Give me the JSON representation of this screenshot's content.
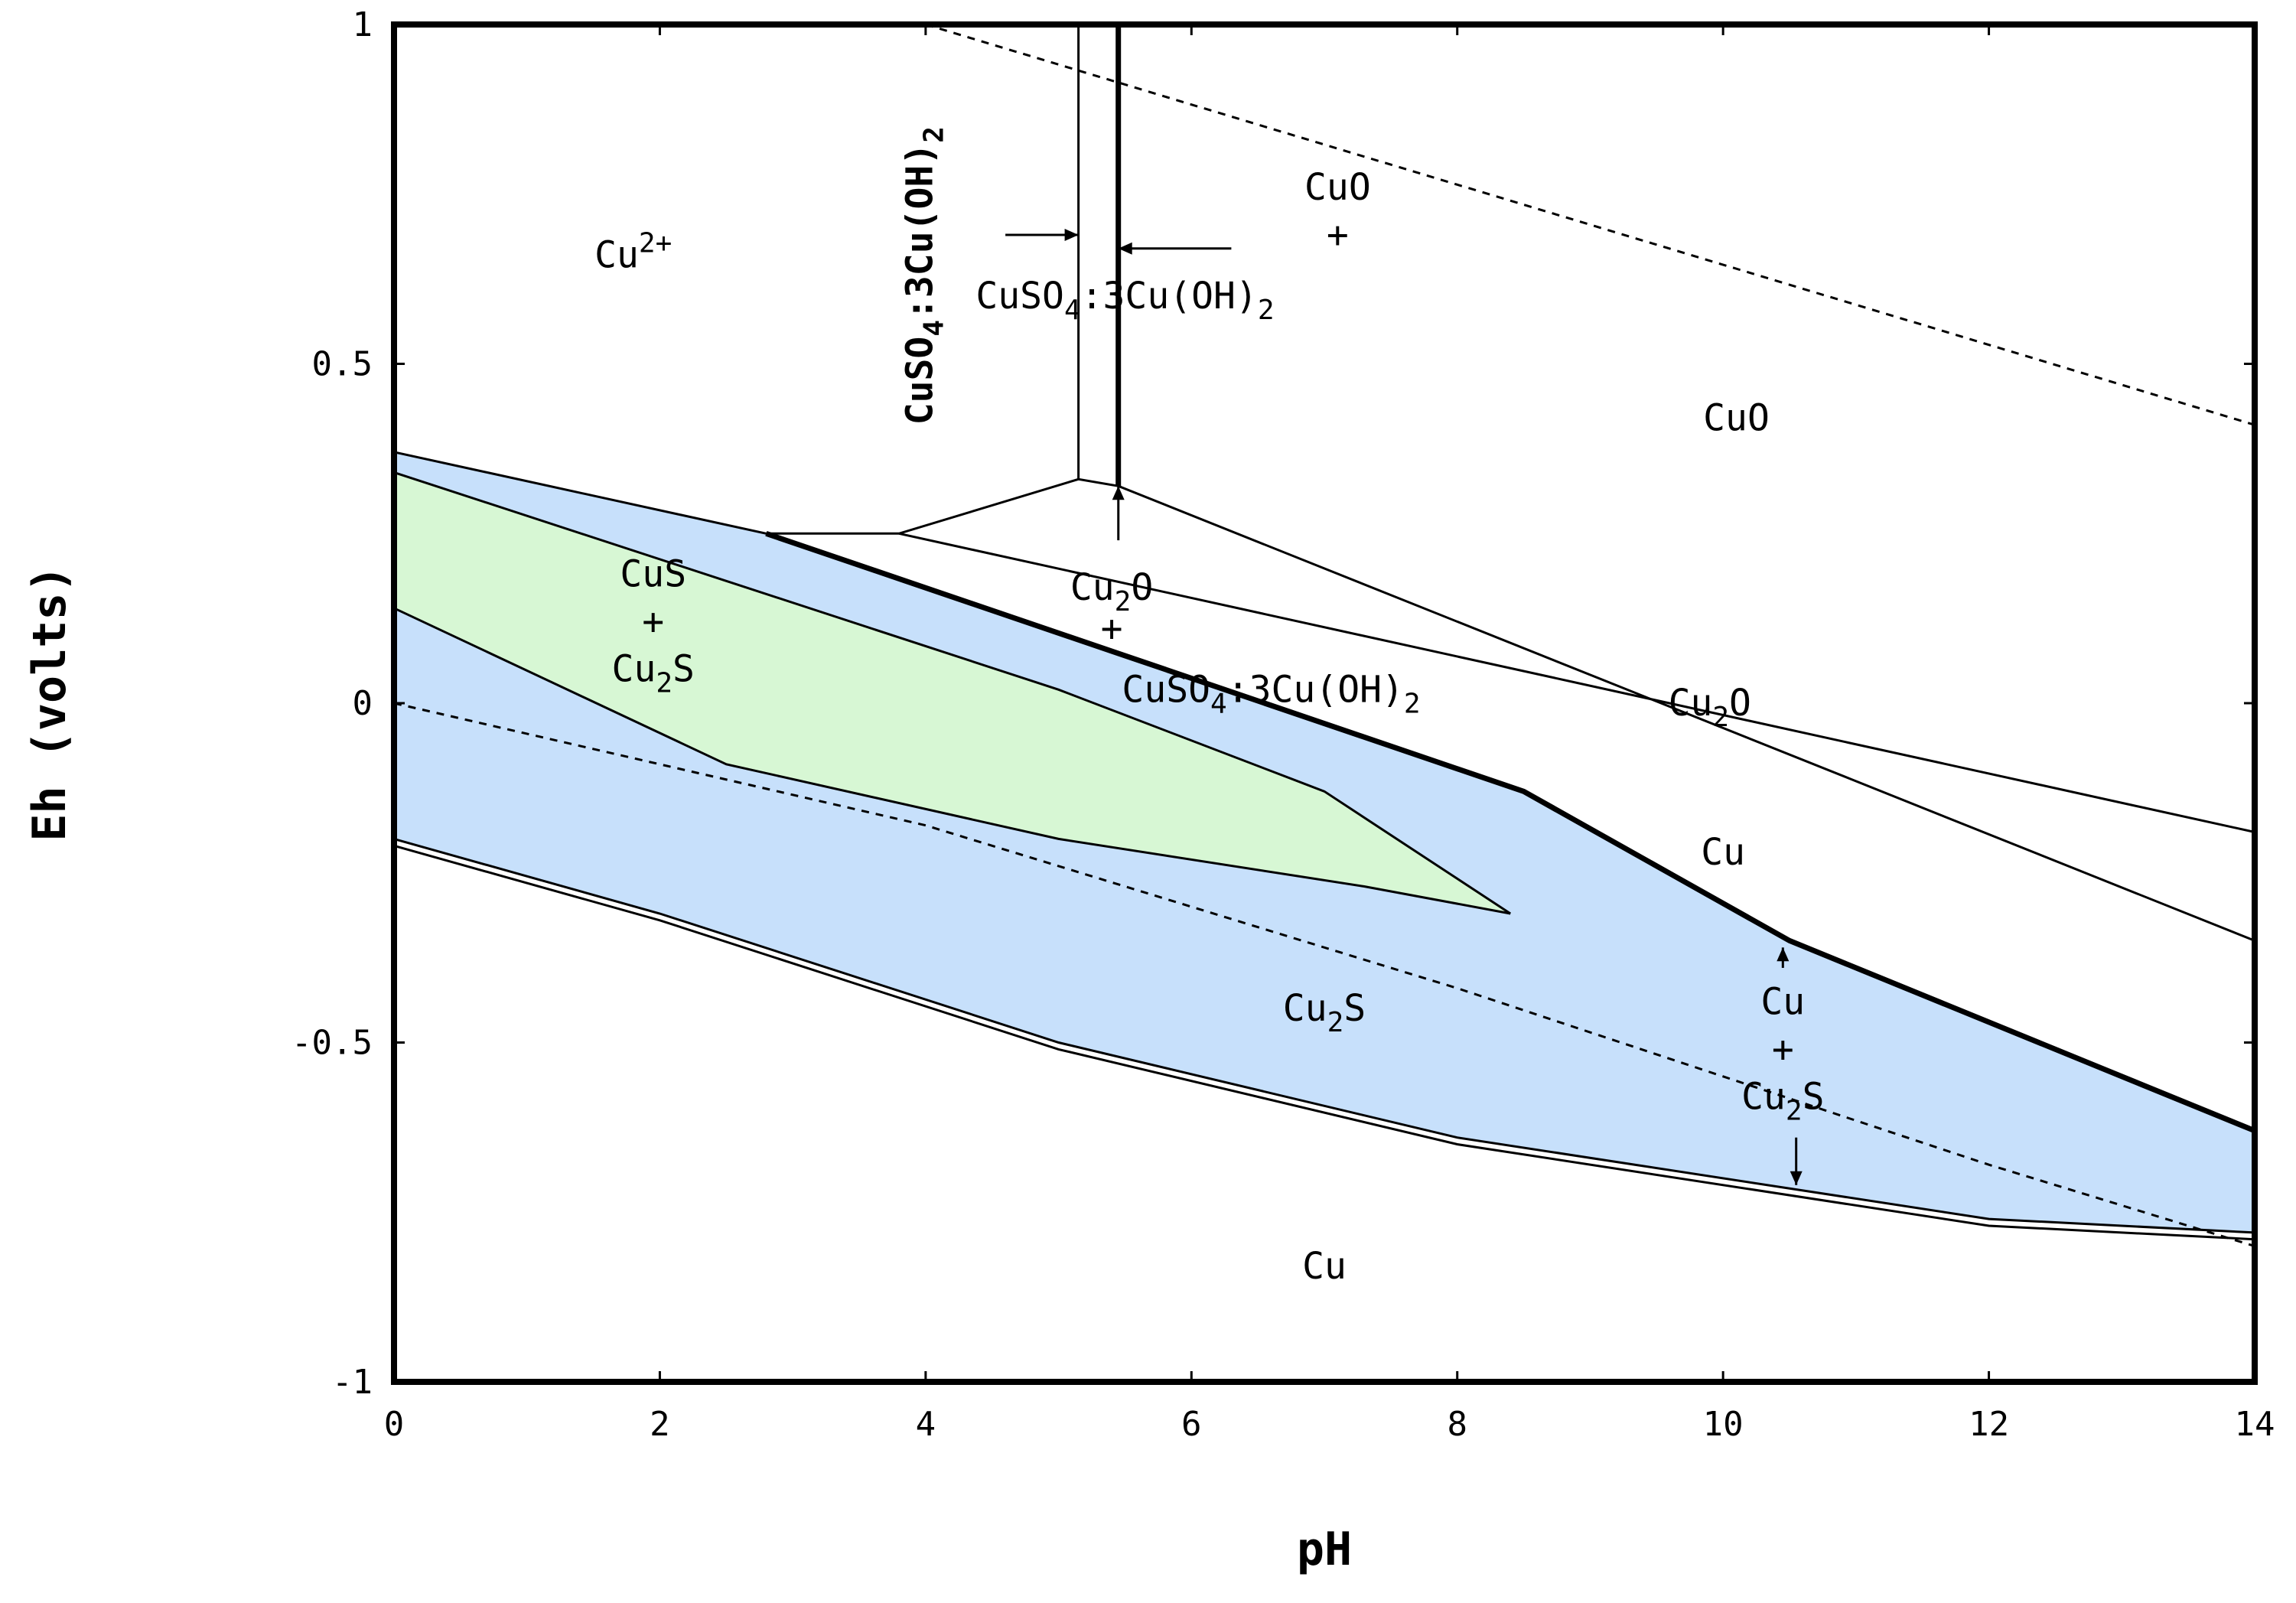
{
  "chart_data": {
    "type": "area",
    "title": "",
    "xlabel": "pH",
    "ylabel": "Eh (volts)",
    "xlim": [
      0,
      14
    ],
    "ylim": [
      -1,
      1
    ],
    "xticks": [
      "0",
      "2",
      "4",
      "6",
      "8",
      "10",
      "12",
      "14"
    ],
    "yticks": [
      "1",
      "0.5",
      "0",
      "-0.5",
      "-1"
    ],
    "colors": {
      "blue_field": "#c7e0fb",
      "green_field": "#d7f7d4",
      "lines": "#000000"
    },
    "fields": [
      {
        "name": "blue_field",
        "polygon": [
          [
            0,
            0.37
          ],
          [
            2.8,
            0.25
          ],
          [
            5.5,
            0.07
          ],
          [
            8.5,
            -0.13
          ],
          [
            10.5,
            -0.35
          ],
          [
            14,
            -0.63
          ],
          [
            14,
            -0.78
          ],
          [
            12,
            -0.76
          ],
          [
            8,
            -0.64
          ],
          [
            5,
            -0.5
          ],
          [
            2,
            -0.31
          ],
          [
            0,
            -0.2
          ]
        ]
      },
      {
        "name": "green_field",
        "polygon": [
          [
            0,
            0.34
          ],
          [
            2.5,
            0.18
          ],
          [
            5,
            0.02
          ],
          [
            7,
            -0.13
          ],
          [
            8.4,
            -0.31
          ],
          [
            7.3,
            -0.27
          ],
          [
            5,
            -0.2
          ],
          [
            2.5,
            -0.09
          ],
          [
            0,
            0.14
          ]
        ]
      }
    ],
    "lines": [
      {
        "style": "bold",
        "points": [
          [
            2.8,
            0.25
          ],
          [
            5.5,
            0.07
          ],
          [
            8.5,
            -0.13
          ],
          [
            10.5,
            -0.35
          ],
          [
            14,
            -0.63
          ]
        ]
      },
      {
        "style": "solid",
        "points": [
          [
            0,
            0.37
          ],
          [
            2.8,
            0.25
          ]
        ]
      },
      {
        "style": "solid",
        "points": [
          [
            0,
            0.34
          ],
          [
            2.5,
            0.18
          ],
          [
            5,
            0.02
          ],
          [
            7,
            -0.13
          ],
          [
            8.4,
            -0.31
          ]
        ]
      },
      {
        "style": "solid",
        "points": [
          [
            0,
            0.14
          ],
          [
            2.5,
            -0.09
          ],
          [
            5,
            -0.2
          ],
          [
            7.3,
            -0.27
          ],
          [
            8.4,
            -0.31
          ]
        ]
      },
      {
        "style": "solid",
        "points": [
          [
            0,
            -0.2
          ],
          [
            2,
            -0.31
          ],
          [
            5,
            -0.5
          ],
          [
            8,
            -0.64
          ],
          [
            12,
            -0.76
          ],
          [
            14,
            -0.78
          ]
        ]
      },
      {
        "style": "solid",
        "points": [
          [
            0,
            -0.21
          ],
          [
            2,
            -0.32
          ],
          [
            5,
            -0.51
          ],
          [
            8,
            -0.65
          ],
          [
            12,
            -0.77
          ],
          [
            14,
            -0.79
          ]
        ]
      },
      {
        "style": "solid",
        "points": [
          [
            5.15,
            1
          ],
          [
            5.15,
            0.33
          ]
        ]
      },
      {
        "style": "bold",
        "points": [
          [
            5.45,
            1
          ],
          [
            5.45,
            0.32
          ]
        ]
      },
      {
        "style": "solid",
        "points": [
          [
            2.8,
            0.25
          ],
          [
            3.8,
            0.25
          ],
          [
            5.15,
            0.33
          ],
          [
            5.45,
            0.32
          ]
        ]
      },
      {
        "style": "solid",
        "points": [
          [
            3.8,
            0.25
          ],
          [
            14,
            -0.19
          ]
        ]
      },
      {
        "style": "solid",
        "points": [
          [
            5.45,
            0.32
          ],
          [
            14,
            -0.35
          ]
        ]
      },
      {
        "style": "dashed",
        "points": [
          [
            4,
            1
          ],
          [
            14,
            0.41
          ]
        ]
      },
      {
        "style": "dashed",
        "points": [
          [
            0,
            0
          ],
          [
            4,
            -0.18
          ],
          [
            8,
            -0.42
          ],
          [
            12,
            -0.68
          ],
          [
            14,
            -0.8
          ]
        ]
      }
    ],
    "labels": [
      {
        "text": "Cu",
        "sup": "2+",
        "x": 1.8,
        "y": 0.66
      },
      {
        "text": "CuO",
        "x": 7.1,
        "y": 0.76
      },
      {
        "text": "+",
        "x": 7.1,
        "y": 0.69
      },
      {
        "text": "CuSO",
        "sub": "4",
        "tail": ":3Cu(OH)",
        "sub2": "2",
        "x": 5.5,
        "y": 0.6
      },
      {
        "text": "CuO",
        "x": 10.1,
        "y": 0.42
      },
      {
        "text": "CuS",
        "x": 1.95,
        "y": 0.19
      },
      {
        "text": "+",
        "x": 1.95,
        "y": 0.12
      },
      {
        "text": "Cu",
        "sub": "2",
        "tail": "S",
        "x": 1.95,
        "y": 0.05
      },
      {
        "text": "Cu",
        "sub": "2",
        "tail": "O",
        "x": 5.4,
        "y": 0.17
      },
      {
        "text": "+",
        "x": 5.4,
        "y": 0.11
      },
      {
        "text": "CuSO",
        "sub": "4",
        "tail": ":3Cu(OH)",
        "sub2": "2",
        "x": 6.6,
        "y": 0.02
      },
      {
        "text": "Cu",
        "sub": "2",
        "tail": "O",
        "x": 9.9,
        "y": 0
      },
      {
        "text": "Cu",
        "x": 10,
        "y": -0.22
      },
      {
        "text": "Cu",
        "sub": "2",
        "tail": "S",
        "x": 7,
        "y": -0.45
      },
      {
        "text": "Cu",
        "x": 10.45,
        "y": -0.44
      },
      {
        "text": "+",
        "x": 10.45,
        "y": -0.51
      },
      {
        "text": "Cu",
        "sub": "2",
        "tail": "S",
        "x": 10.45,
        "y": -0.58
      },
      {
        "text": "Cu",
        "x": 7,
        "y": -0.83
      }
    ],
    "rotated_label": {
      "text": "CuSO",
      "sub": "4",
      "tail": ":3Cu(OH)",
      "sub2": "2",
      "x": 4.05,
      "y": 0.63
    },
    "arrows": [
      {
        "from": [
          4.6,
          0.69
        ],
        "to": [
          5.15,
          0.69
        ]
      },
      {
        "from": [
          6.3,
          0.67
        ],
        "to": [
          5.45,
          0.67
        ]
      },
      {
        "from": [
          5.45,
          0.24
        ],
        "to": [
          5.45,
          0.32
        ]
      },
      {
        "from": [
          10.45,
          -0.39
        ],
        "to": [
          10.45,
          -0.36
        ]
      },
      {
        "from": [
          10.55,
          -0.64
        ],
        "to": [
          10.55,
          -0.71
        ]
      }
    ]
  }
}
